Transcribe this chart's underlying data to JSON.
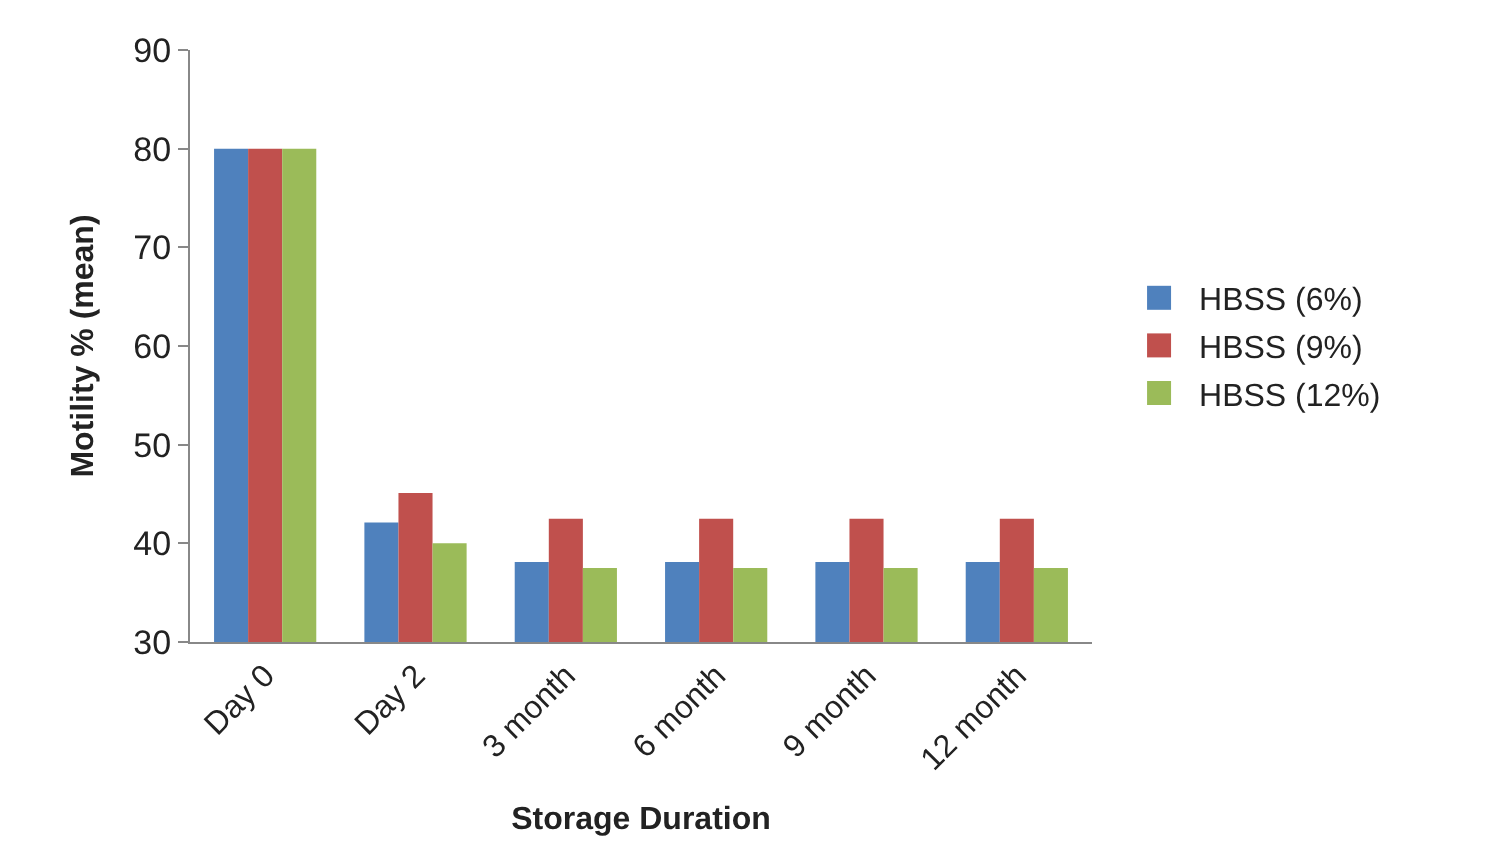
{
  "chart_data": {
    "type": "bar",
    "xlabel": "Storage Duration",
    "ylabel": "Motility % (mean)",
    "categories": [
      "Day 0",
      "Day 2",
      "3 month",
      "6 month",
      "9 month",
      "12 month"
    ],
    "series": [
      {
        "name": "HBSS (6%)",
        "color": "#4f81bd",
        "values": [
          80,
          42.1,
          38.1,
          38.1,
          38.1,
          38.1
        ]
      },
      {
        "name": "HBSS (9%)",
        "color": "#c0504d",
        "values": [
          80,
          45.1,
          42.5,
          42.5,
          42.5,
          42.5
        ]
      },
      {
        "name": "HBSS (12%)",
        "color": "#9bbb59",
        "values": [
          80,
          40,
          37.5,
          37.5,
          37.5,
          37.5
        ]
      }
    ],
    "ylim": [
      30,
      90
    ],
    "yticks": [
      30,
      40,
      50,
      60,
      70,
      80,
      90
    ],
    "grid": false,
    "legend": "right"
  }
}
